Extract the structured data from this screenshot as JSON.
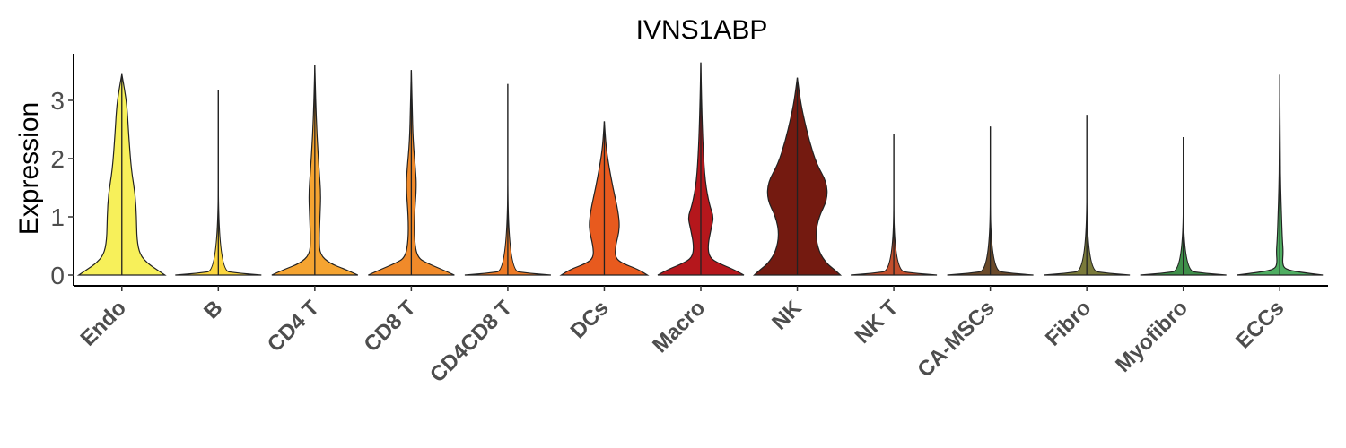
{
  "chart_data": {
    "type": "violin",
    "title": "IVNS1ABP",
    "ylabel": "Expression",
    "xlabel": "",
    "ylim": [
      -0.15,
      3.85
    ],
    "yticks": [
      0,
      1,
      2,
      3
    ],
    "grid": false,
    "legend": "none",
    "categories": [
      "Endo",
      "B",
      "CD4 T",
      "CD8 T",
      "CD4CD8 T",
      "DCs",
      "Macro",
      "NK",
      "NK T",
      "CA-MSCs",
      "Fibro",
      "Myofibro",
      "ECCs"
    ],
    "colors": [
      "#F7F05A",
      "#FBD63F",
      "#F5A431",
      "#F08A2A",
      "#EE7A25",
      "#E85A1E",
      "#B5171C",
      "#741A10",
      "#C24E2C",
      "#6B4A2A",
      "#7A7A3A",
      "#3F8F4A",
      "#4FAE62"
    ],
    "max_values": [
      3.45,
      3.17,
      3.6,
      3.52,
      3.28,
      2.64,
      3.65,
      3.39,
      2.42,
      2.55,
      2.75,
      2.37,
      3.44
    ],
    "density_profiles": [
      [
        [
          0,
          1.0
        ],
        [
          0.1,
          0.8
        ],
        [
          0.2,
          0.6
        ],
        [
          0.35,
          0.42
        ],
        [
          0.6,
          0.35
        ],
        [
          1.0,
          0.34
        ],
        [
          1.4,
          0.31
        ],
        [
          1.8,
          0.22
        ],
        [
          2.4,
          0.16
        ],
        [
          2.9,
          0.12
        ],
        [
          3.2,
          0.06
        ],
        [
          3.45,
          0
        ]
      ],
      [
        [
          0,
          1.0
        ],
        [
          0.03,
          0.5
        ],
        [
          0.08,
          0
        ],
        [
          3.17,
          0
        ]
      ],
      [
        [
          0,
          1.0
        ],
        [
          0.1,
          0.7
        ],
        [
          0.2,
          0.35
        ],
        [
          0.35,
          0.12
        ],
        [
          0.6,
          0.1
        ],
        [
          1.0,
          0.12
        ],
        [
          1.4,
          0.14
        ],
        [
          1.8,
          0.1
        ],
        [
          2.4,
          0.05
        ],
        [
          3.0,
          0.02
        ],
        [
          3.6,
          0
        ]
      ],
      [
        [
          0,
          1.0
        ],
        [
          0.1,
          0.7
        ],
        [
          0.2,
          0.38
        ],
        [
          0.3,
          0.14
        ],
        [
          0.6,
          0.07
        ],
        [
          1.0,
          0.07
        ],
        [
          1.5,
          0.12
        ],
        [
          1.8,
          0.1
        ],
        [
          2.3,
          0.04
        ],
        [
          2.9,
          0.02
        ],
        [
          3.52,
          0
        ]
      ],
      [
        [
          0,
          1.0
        ],
        [
          0.03,
          0.5
        ],
        [
          0.08,
          0
        ],
        [
          3.28,
          0
        ]
      ],
      [
        [
          0,
          1.0
        ],
        [
          0.1,
          0.78
        ],
        [
          0.2,
          0.42
        ],
        [
          0.3,
          0.25
        ],
        [
          0.5,
          0.26
        ],
        [
          0.8,
          0.36
        ],
        [
          1.1,
          0.32
        ],
        [
          1.5,
          0.2
        ],
        [
          1.9,
          0.1
        ],
        [
          2.2,
          0.04
        ],
        [
          2.64,
          0
        ]
      ],
      [
        [
          0,
          1.0
        ],
        [
          0.1,
          0.75
        ],
        [
          0.2,
          0.42
        ],
        [
          0.3,
          0.2
        ],
        [
          0.5,
          0.16
        ],
        [
          0.8,
          0.24
        ],
        [
          1.0,
          0.3
        ],
        [
          1.2,
          0.2
        ],
        [
          1.6,
          0.1
        ],
        [
          2.2,
          0.05
        ],
        [
          2.9,
          0.02
        ],
        [
          3.65,
          0
        ]
      ],
      [
        [
          0,
          1.0
        ],
        [
          0.1,
          0.85
        ],
        [
          0.2,
          0.68
        ],
        [
          0.4,
          0.5
        ],
        [
          0.7,
          0.42
        ],
        [
          1.0,
          0.5
        ],
        [
          1.3,
          0.7
        ],
        [
          1.6,
          0.68
        ],
        [
          1.9,
          0.45
        ],
        [
          2.3,
          0.28
        ],
        [
          2.7,
          0.15
        ],
        [
          3.0,
          0.07
        ],
        [
          3.39,
          0
        ]
      ],
      [
        [
          0,
          1.0
        ],
        [
          0.03,
          0.5
        ],
        [
          0.08,
          0
        ],
        [
          2.42,
          0
        ]
      ],
      [
        [
          0,
          1.0
        ],
        [
          0.03,
          0.5
        ],
        [
          0.08,
          0
        ],
        [
          2.55,
          0
        ]
      ],
      [
        [
          0,
          1.0
        ],
        [
          0.03,
          0.5
        ],
        [
          0.08,
          0
        ],
        [
          2.75,
          0
        ]
      ],
      [
        [
          0,
          1.0
        ],
        [
          0.03,
          0.5
        ],
        [
          0.08,
          0
        ],
        [
          2.37,
          0
        ]
      ],
      [
        [
          0,
          1.0
        ],
        [
          0.05,
          0.45
        ],
        [
          0.1,
          0.12
        ],
        [
          0.2,
          0.06
        ],
        [
          0.4,
          0.08
        ],
        [
          0.6,
          0.06
        ],
        [
          1.0,
          0.04
        ],
        [
          1.5,
          0.02
        ],
        [
          2.0,
          0.01
        ],
        [
          3.44,
          0
        ]
      ]
    ]
  }
}
